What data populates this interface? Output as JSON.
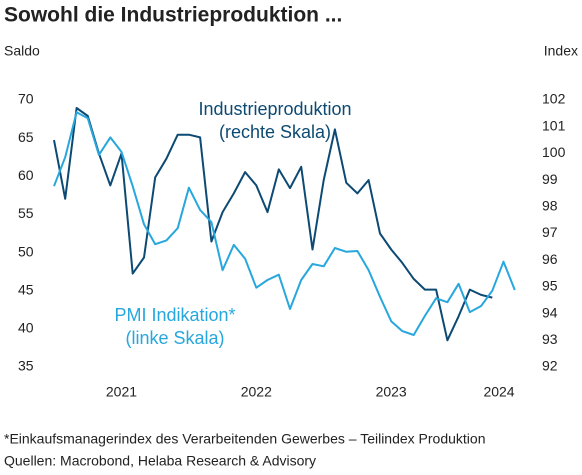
{
  "chart_data": {
    "type": "line",
    "title": "Sowohl die Industrieproduktion ...",
    "ylabel": "Saldo",
    "y2label": "Index",
    "x": [
      2021,
      2021.083,
      2021.167,
      2021.25,
      2021.333,
      2021.417,
      2021.5,
      2021.583,
      2021.667,
      2021.75,
      2021.833,
      2021.917,
      2022,
      2022.083,
      2022.167,
      2022.25,
      2022.333,
      2022.417,
      2022.5,
      2022.583,
      2022.667,
      2022.75,
      2022.833,
      2022.917,
      2023,
      2023.083,
      2023.167,
      2023.25,
      2023.333,
      2023.417,
      2023.5,
      2023.583,
      2023.667,
      2023.75,
      2023.833,
      2023.917,
      2024,
      2024.083,
      2024.167,
      2024.25,
      2024.333,
      2024.417
    ],
    "xlim": [
      2020.97,
      2024.5
    ],
    "xticks": [
      {
        "value": 2021.5,
        "label": "2021"
      },
      {
        "value": 2022.5,
        "label": "2022"
      },
      {
        "value": 2023.5,
        "label": "2023"
      },
      {
        "value": 2024.3,
        "label": "2024"
      }
    ],
    "ylim": [
      35,
      70
    ],
    "yticks": [
      35,
      40,
      45,
      50,
      55,
      60,
      65,
      70
    ],
    "y2lim": [
      92,
      102
    ],
    "y2ticks": [
      92,
      93,
      94,
      95,
      96,
      97,
      98,
      99,
      100,
      101,
      102
    ],
    "series": [
      {
        "name": "Industrieproduktion",
        "note": "(rechte Skala)",
        "color": "#0d4a73",
        "axis": "y2",
        "values": [
          100.5,
          98.3,
          101.7,
          101.4,
          100.0,
          98.8,
          100.0,
          95.5,
          96.1,
          99.1,
          99.8,
          100.7,
          100.7,
          100.6,
          96.7,
          97.8,
          98.5,
          99.3,
          98.8,
          97.8,
          99.4,
          98.7,
          99.5,
          96.4,
          99.0,
          100.9,
          98.9,
          98.5,
          99.0,
          97.0,
          96.4,
          95.9,
          95.3,
          94.9,
          94.9,
          93.0,
          93.9,
          94.9,
          94.7,
          94.6,
          null,
          null
        ]
      },
      {
        "name": "PMI Indikation*",
        "note": "(linke Skala)",
        "color": "#27a7dd",
        "values": [
          58.7,
          62.5,
          68.4,
          67.6,
          62.8,
          65.1,
          63.2,
          58.7,
          53.7,
          51.1,
          51.6,
          53.2,
          58.5,
          55.6,
          54.0,
          47.7,
          51.0,
          49.2,
          45.4,
          46.4,
          47.1,
          42.6,
          46.4,
          48.5,
          48.2,
          50.6,
          50.1,
          50.2,
          47.7,
          44.2,
          41.0,
          39.7,
          39.2,
          41.7,
          44.0,
          43.5,
          45.9,
          42.2,
          43.0,
          45.0,
          48.8,
          45.1
        ]
      }
    ],
    "footnotes": [
      "*Einkaufsmanagerindex des Verarbeitenden Gewerbes – Teilindex Produktion",
      "Quellen: Macrobond, Helaba Research & Advisory"
    ]
  }
}
